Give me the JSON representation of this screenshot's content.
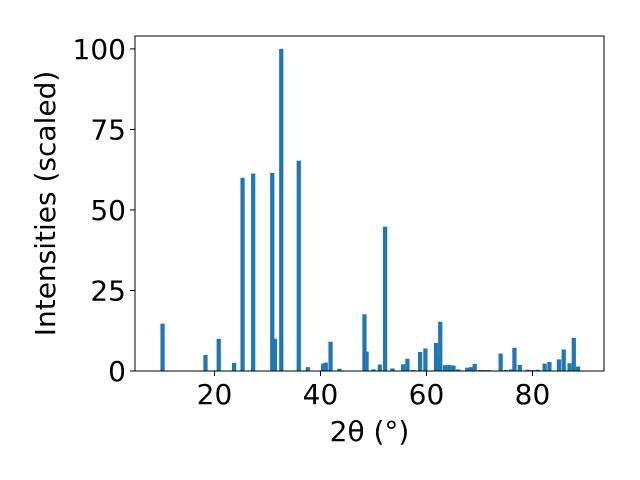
{
  "chart_data": {
    "type": "bar",
    "xlabel": "2θ (°)",
    "ylabel": "Intensities (scaled)",
    "xlim": [
      5,
      93.5
    ],
    "ylim": [
      0,
      104
    ],
    "xticks": [
      20,
      40,
      60,
      80
    ],
    "yticks": [
      0,
      25,
      50,
      75,
      100
    ],
    "bar_color": "#1f77b4",
    "bar_width": 0.8,
    "grid": false,
    "x": [
      10.2,
      18.3,
      20.8,
      23.7,
      25.3,
      27.3,
      30.9,
      31.4,
      32.6,
      35.9,
      37.6,
      40.5,
      41.0,
      41.9,
      43.6,
      48.3,
      48.7,
      50.0,
      51.2,
      52.2,
      53.6,
      55.6,
      56.4,
      57.5,
      58.8,
      59.8,
      61.8,
      62.3,
      62.6,
      63.5,
      64.3,
      65.1,
      66.0,
      67.7,
      68.4,
      69.1,
      70.1,
      70.9,
      71.8,
      74.0,
      75.0,
      76.0,
      76.6,
      77.6,
      79.1,
      80.0,
      81.0,
      82.3,
      83.2,
      85.0,
      85.9,
      87.0,
      87.8,
      88.6
    ],
    "values": [
      14.7,
      5,
      10,
      2.5,
      60,
      61.3,
      61.5,
      10,
      100,
      65.3,
      1.2,
      2.3,
      2.6,
      9.1,
      0.7,
      17.6,
      6,
      0.5,
      2,
      44.8,
      0.8,
      2.1,
      3.8,
      0.3,
      5.9,
      7,
      8.7,
      4.4,
      15.3,
      1.8,
      1.9,
      1.7,
      0.5,
      1,
      1.2,
      2.2,
      0.3,
      0.3,
      0.3,
      5.4,
      0.3,
      0.5,
      7.2,
      1.9,
      0.4,
      0.3,
      0.4,
      2.3,
      2.8,
      3.6,
      6.7,
      2.4,
      10.3,
      1.4
    ]
  }
}
